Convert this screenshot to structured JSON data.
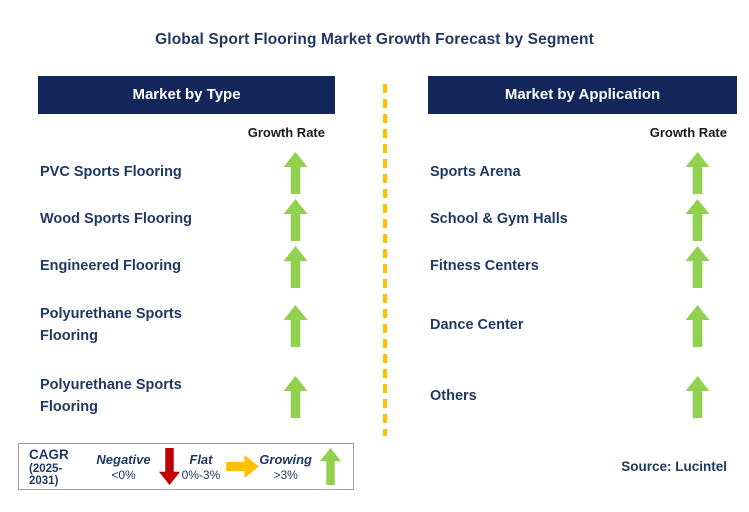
{
  "title": "Global Sport Flooring Market Growth Forecast by Segment",
  "columns": [
    {
      "header": "Market by Type",
      "growth_rate_label": "Growth Rate",
      "items": [
        {
          "label": "PVC Sports Flooring",
          "trend": "up"
        },
        {
          "label": "Wood Sports Flooring",
          "trend": "up"
        },
        {
          "label": "Engineered Flooring",
          "trend": "up"
        },
        {
          "label": "Polyurethane Sports Flooring",
          "trend": "up"
        },
        {
          "label": "Polyurethane Sports Flooring",
          "trend": "up"
        }
      ]
    },
    {
      "header": "Market by Application",
      "growth_rate_label": "Growth Rate",
      "items": [
        {
          "label": "Sports Arena",
          "trend": "up"
        },
        {
          "label": "School & Gym Halls",
          "trend": "up"
        },
        {
          "label": "Fitness Centers",
          "trend": "up"
        },
        {
          "label": "Dance Center",
          "trend": "up"
        },
        {
          "label": "Others",
          "trend": "up"
        }
      ]
    }
  ],
  "legend": {
    "title": "CAGR",
    "period": "(2025-2031)",
    "entries": [
      {
        "label": "Negative",
        "range": "<0%",
        "direction": "down",
        "color": "#C00000"
      },
      {
        "label": "Flat",
        "range": "0%-3%",
        "direction": "right",
        "color": "#FFC000"
      },
      {
        "label": "Growing",
        "range": ">3%",
        "direction": "up",
        "color": "#92D050"
      }
    ]
  },
  "source": "Source: Lucintel",
  "colors": {
    "navy_text": "#1F3864",
    "header_bg": "#13265C",
    "header_text": "#FFFFFF",
    "growth_rate_text": "#1A1A1A",
    "arrow_up": "#92D050",
    "arrow_down": "#C00000",
    "arrow_flat": "#FFC000",
    "divider": "#FFC000",
    "legend_border": "#9E9E9E"
  }
}
